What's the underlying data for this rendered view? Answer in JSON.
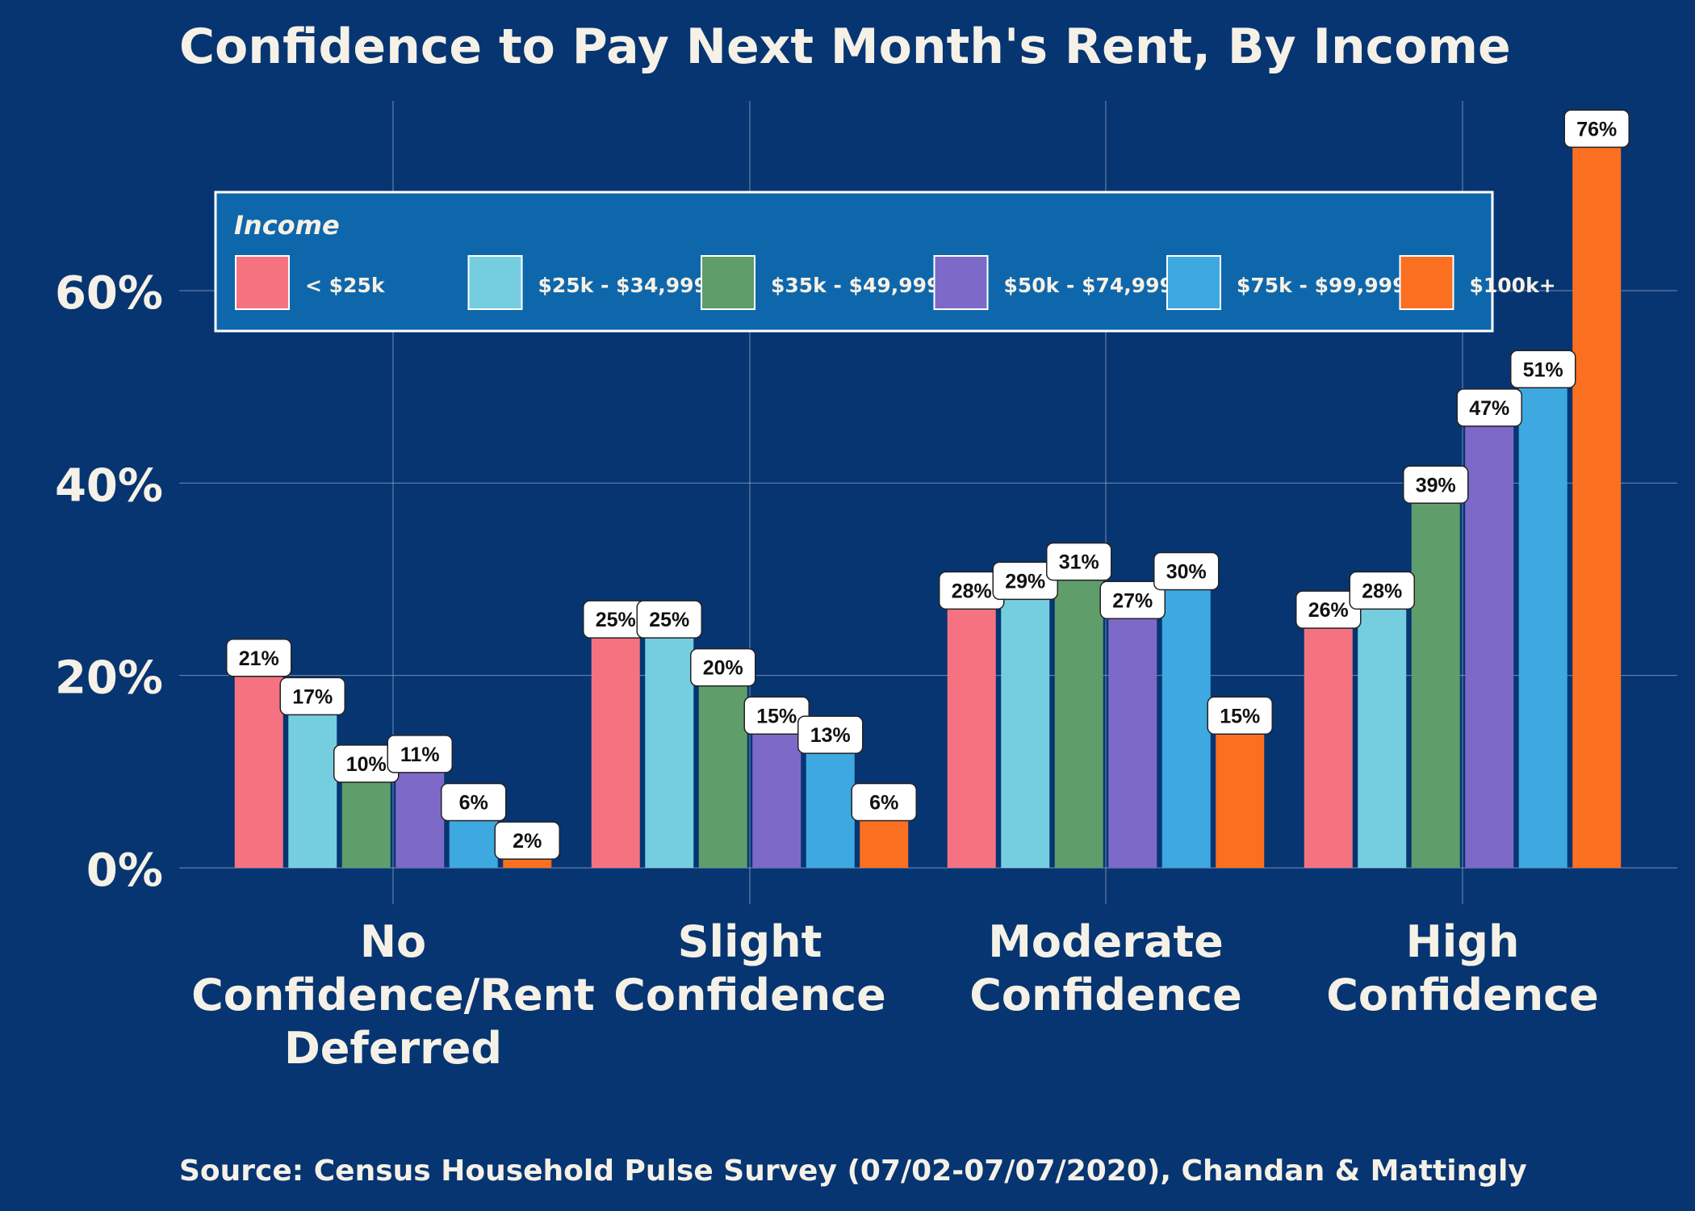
{
  "chart_data": {
    "type": "bar",
    "title": "Confidence to Pay Next Month's Rent, By Income",
    "source": "Source: Census Household Pulse Survey (07/02-07/07/2020), Chandan & Mattingly",
    "categories": [
      [
        "No",
        "Confidence/Rent",
        "Deferred"
      ],
      [
        "Slight",
        "Confidence"
      ],
      [
        "Moderate",
        "Confidence"
      ],
      [
        "High",
        "Confidence"
      ]
    ],
    "ylim": [
      0,
      0.8
    ],
    "y_ticks": [
      {
        "value": 0,
        "label": "0%"
      },
      {
        "value": 0.2,
        "label": "20%"
      },
      {
        "value": 0.4,
        "label": "40%"
      },
      {
        "value": 0.6,
        "label": "60%"
      }
    ],
    "legend": {
      "title": "Income",
      "placement": "top-left"
    },
    "grid": true,
    "series": [
      {
        "name": "< $25k",
        "color": "#f57381",
        "values": [
          0.21,
          0.25,
          0.28,
          0.26
        ],
        "labels": [
          "21%",
          "25%",
          "28%",
          "26%"
        ]
      },
      {
        "name": "$25k - $34,999",
        "color": "#75cee0",
        "values": [
          0.17,
          0.25,
          0.29,
          0.28
        ],
        "labels": [
          "17%",
          "25%",
          "29%",
          "28%"
        ]
      },
      {
        "name": "$35k - $49,999",
        "color": "#5f9d6a",
        "values": [
          0.1,
          0.2,
          0.31,
          0.39
        ],
        "labels": [
          "10%",
          "20%",
          "31%",
          "39%"
        ]
      },
      {
        "name": "$50k - $74,999",
        "color": "#7d69c8",
        "values": [
          0.11,
          0.15,
          0.27,
          0.47
        ],
        "labels": [
          "11%",
          "15%",
          "27%",
          "47%"
        ]
      },
      {
        "name": "$75k - $99,999",
        "color": "#3ea8e0",
        "values": [
          0.06,
          0.13,
          0.3,
          0.51
        ],
        "labels": [
          "6%",
          "13%",
          "30%",
          "51%"
        ]
      },
      {
        "name": "$100k+",
        "color": "#fb6f21",
        "values": [
          0.02,
          0.06,
          0.15,
          0.76
        ],
        "labels": [
          "2%",
          "6%",
          "15%",
          "76%"
        ]
      }
    ]
  }
}
